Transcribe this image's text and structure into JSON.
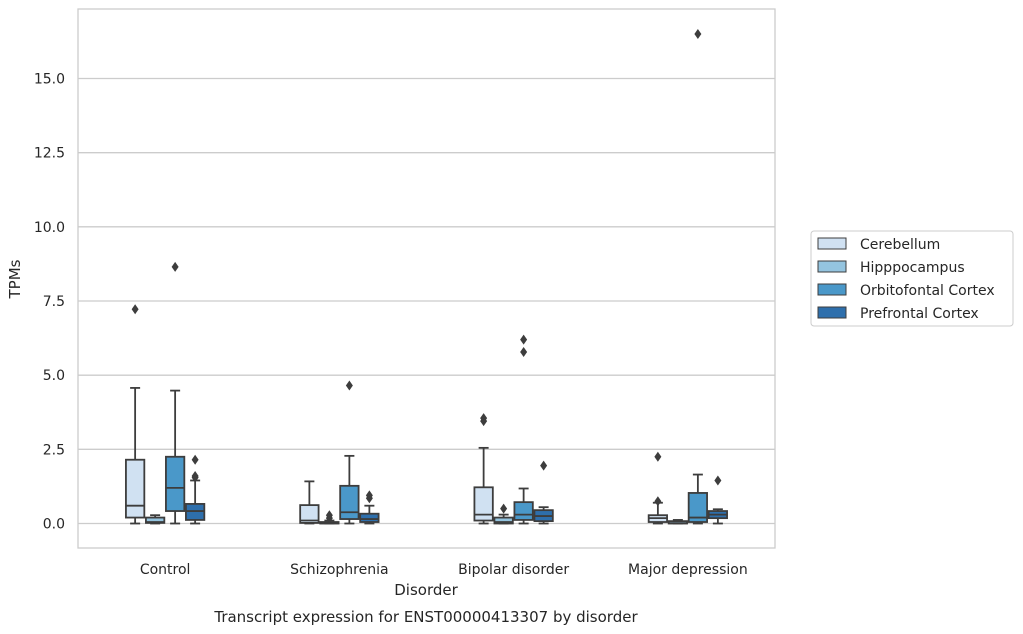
{
  "chart_data": {
    "type": "box",
    "title": "Transcript expression for ENST00000413307 by disorder",
    "xlabel": "Disorder",
    "ylabel": "TPMs",
    "ylim": [
      -0.83,
      17.5
    ],
    "yticks": [
      "0.0",
      "2.5",
      "5.0",
      "7.5",
      "10.0",
      "12.5",
      "15.0"
    ],
    "categories": [
      "Control",
      "Schizophrenia",
      "Bipolar disorder",
      "Major depression"
    ],
    "grid": true,
    "legend_position": "right",
    "series": [
      {
        "name": "Cerebellum",
        "color": "#d0e1f2",
        "boxes": [
          {
            "whisker_low": 0.0,
            "q1": 0.2,
            "median": 0.6,
            "q3": 2.15,
            "whisker_high": 4.57,
            "outliers": [
              7.22
            ]
          },
          {
            "whisker_low": 0.0,
            "q1": 0.02,
            "median": 0.1,
            "q3": 0.62,
            "whisker_high": 1.42,
            "outliers": []
          },
          {
            "whisker_low": 0.0,
            "q1": 0.1,
            "median": 0.3,
            "q3": 1.22,
            "whisker_high": 2.55,
            "outliers": [
              3.45,
              3.55
            ]
          },
          {
            "whisker_low": 0.0,
            "q1": 0.05,
            "median": 0.18,
            "q3": 0.28,
            "whisker_high": 0.7,
            "outliers": [
              0.75,
              2.25
            ]
          }
        ]
      },
      {
        "name": "Hipppocampus",
        "color": "#94c4df",
        "boxes": [
          {
            "whisker_low": 0.0,
            "q1": 0.02,
            "median": 0.05,
            "q3": 0.2,
            "whisker_high": 0.28,
            "outliers": []
          },
          {
            "whisker_low": 0.0,
            "q1": 0.0,
            "median": 0.01,
            "q3": 0.05,
            "whisker_high": 0.1,
            "outliers": [
              0.18,
              0.28
            ]
          },
          {
            "whisker_low": 0.0,
            "q1": 0.0,
            "median": 0.05,
            "q3": 0.2,
            "whisker_high": 0.3,
            "outliers": [
              0.5
            ]
          },
          {
            "whisker_low": 0.0,
            "q1": 0.0,
            "median": 0.01,
            "q3": 0.08,
            "whisker_high": 0.12,
            "outliers": []
          }
        ]
      },
      {
        "name": "Orbitofontal Cortex",
        "color": "#4a98c9",
        "boxes": [
          {
            "whisker_low": 0.0,
            "q1": 0.42,
            "median": 1.2,
            "q3": 2.25,
            "whisker_high": 4.48,
            "outliers": [
              8.65
            ]
          },
          {
            "whisker_low": 0.0,
            "q1": 0.15,
            "median": 0.38,
            "q3": 1.27,
            "whisker_high": 2.28,
            "outliers": [
              4.65
            ]
          },
          {
            "whisker_low": 0.0,
            "q1": 0.12,
            "median": 0.3,
            "q3": 0.72,
            "whisker_high": 1.18,
            "outliers": [
              5.78,
              6.2
            ]
          },
          {
            "whisker_low": 0.0,
            "q1": 0.05,
            "median": 0.2,
            "q3": 1.03,
            "whisker_high": 1.65,
            "outliers": [
              16.5
            ]
          }
        ]
      },
      {
        "name": "Prefrontal Cortex",
        "color": "#2e6fac",
        "boxes": [
          {
            "whisker_low": 0.0,
            "q1": 0.12,
            "median": 0.42,
            "q3": 0.66,
            "whisker_high": 1.45,
            "outliers": [
              1.55,
              1.6,
              2.15
            ]
          },
          {
            "whisker_low": 0.0,
            "q1": 0.05,
            "median": 0.15,
            "q3": 0.33,
            "whisker_high": 0.6,
            "outliers": [
              0.85,
              0.95
            ]
          },
          {
            "whisker_low": 0.0,
            "q1": 0.08,
            "median": 0.25,
            "q3": 0.45,
            "whisker_high": 0.55,
            "outliers": [
              1.95
            ]
          },
          {
            "whisker_low": 0.0,
            "q1": 0.18,
            "median": 0.3,
            "q3": 0.42,
            "whisker_high": 0.48,
            "outliers": [
              1.45
            ]
          }
        ]
      }
    ]
  }
}
